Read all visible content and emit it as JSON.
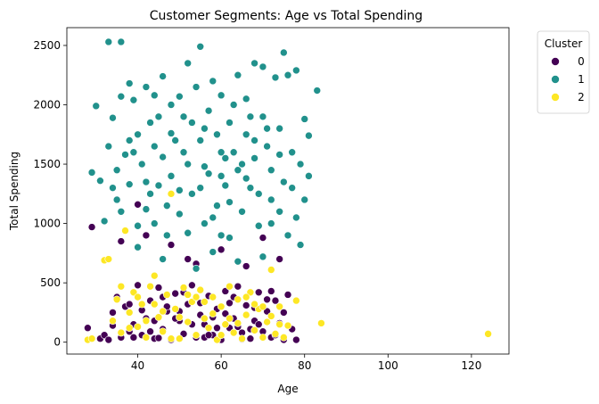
{
  "chart_data": {
    "type": "scatter",
    "title": "Customer Segments: Age vs Total Spending",
    "xlabel": "Age",
    "ylabel": "Total Spending",
    "xlim": [
      23,
      129
    ],
    "ylim": [
      -100,
      2650
    ],
    "x_ticks": [
      40,
      60,
      80,
      100,
      120
    ],
    "y_ticks": [
      0,
      500,
      1000,
      1500,
      2000,
      2500
    ],
    "grid": false,
    "legend": {
      "title": "Cluster",
      "placement": "outside-top-right"
    },
    "series": [
      {
        "name": "0",
        "color": "#440154",
        "points": [
          [
            28,
            120
          ],
          [
            29,
            970
          ],
          [
            31,
            30
          ],
          [
            32,
            60
          ],
          [
            33,
            20
          ],
          [
            34,
            250
          ],
          [
            35,
            380
          ],
          [
            36,
            40
          ],
          [
            37,
            300
          ],
          [
            38,
            90
          ],
          [
            39,
            150
          ],
          [
            40,
            480
          ],
          [
            41,
            60
          ],
          [
            42,
            200
          ],
          [
            43,
            350
          ],
          [
            44,
            30
          ],
          [
            45,
            460
          ],
          [
            46,
            110
          ],
          [
            47,
            260
          ],
          [
            48,
            20
          ],
          [
            49,
            410
          ],
          [
            50,
            180
          ],
          [
            51,
            70
          ],
          [
            52,
            320
          ],
          [
            53,
            480
          ],
          [
            54,
            40
          ],
          [
            55,
            230
          ],
          [
            56,
            150
          ],
          [
            57,
            390
          ],
          [
            58,
            60
          ],
          [
            59,
            280
          ],
          [
            60,
            20
          ],
          [
            61,
            430
          ],
          [
            62,
            120
          ],
          [
            63,
            200
          ],
          [
            64,
            470
          ],
          [
            65,
            80
          ],
          [
            66,
            310
          ],
          [
            67,
            30
          ],
          [
            68,
            180
          ],
          [
            69,
            420
          ],
          [
            70,
            90
          ],
          [
            71,
            260
          ],
          [
            72,
            40
          ],
          [
            73,
            350
          ],
          [
            74,
            160
          ],
          [
            75,
            20
          ],
          [
            76,
            400
          ],
          [
            77,
            110
          ],
          [
            78,
            20
          ],
          [
            38,
            320
          ],
          [
            44,
            180
          ],
          [
            50,
            260
          ],
          [
            56,
            40
          ],
          [
            62,
            330
          ],
          [
            68,
            290
          ],
          [
            46,
            380
          ],
          [
            58,
            210
          ],
          [
            64,
            130
          ],
          [
            72,
            430
          ],
          [
            40,
            1160
          ],
          [
            42,
            900
          ],
          [
            48,
            820
          ],
          [
            36,
            850
          ],
          [
            70,
            880
          ],
          [
            52,
            700
          ],
          [
            54,
            660
          ],
          [
            60,
            780
          ],
          [
            66,
            640
          ],
          [
            74,
            700
          ],
          [
            34,
            140
          ],
          [
            43,
            90
          ],
          [
            47,
            300
          ],
          [
            53,
            150
          ],
          [
            57,
            60
          ],
          [
            61,
            240
          ],
          [
            67,
            110
          ],
          [
            73,
            60
          ],
          [
            75,
            250
          ],
          [
            45,
            35
          ],
          [
            49,
            200
          ],
          [
            55,
            330
          ],
          [
            59,
            120
          ],
          [
            63,
            380
          ],
          [
            65,
            25
          ],
          [
            69,
            150
          ],
          [
            71,
            360
          ],
          [
            39,
            40
          ],
          [
            41,
            270
          ],
          [
            51,
            420
          ]
        ]
      },
      {
        "name": "1",
        "color": "#21918c",
        "points": [
          [
            29,
            1430
          ],
          [
            30,
            1990
          ],
          [
            31,
            1360
          ],
          [
            32,
            1020
          ],
          [
            33,
            1650
          ],
          [
            33,
            2530
          ],
          [
            34,
            1890
          ],
          [
            35,
            1200
          ],
          [
            36,
            2070
          ],
          [
            36,
            2530
          ],
          [
            37,
            1580
          ],
          [
            38,
            1330
          ],
          [
            38,
            2180
          ],
          [
            39,
            2040
          ],
          [
            40,
            1750
          ],
          [
            40,
            980
          ],
          [
            41,
            1500
          ],
          [
            42,
            2150
          ],
          [
            42,
            1120
          ],
          [
            43,
            1850
          ],
          [
            44,
            1650
          ],
          [
            44,
            2080
          ],
          [
            45,
            1320
          ],
          [
            46,
            2240
          ],
          [
            46,
            1560
          ],
          [
            47,
            900
          ],
          [
            48,
            2000
          ],
          [
            48,
            1400
          ],
          [
            49,
            1700
          ],
          [
            50,
            2070
          ],
          [
            50,
            1080
          ],
          [
            51,
            1900
          ],
          [
            52,
            2350
          ],
          [
            52,
            1500
          ],
          [
            53,
            1250
          ],
          [
            54,
            2150
          ],
          [
            55,
            2490
          ],
          [
            55,
            1700
          ],
          [
            56,
            1000
          ],
          [
            57,
            1950
          ],
          [
            57,
            1420
          ],
          [
            58,
            2200
          ],
          [
            59,
            1150
          ],
          [
            60,
            1600
          ],
          [
            60,
            2080
          ],
          [
            61,
            1320
          ],
          [
            62,
            1850
          ],
          [
            62,
            880
          ],
          [
            63,
            2000
          ],
          [
            64,
            1450
          ],
          [
            64,
            2250
          ],
          [
            65,
            1100
          ],
          [
            66,
            1750
          ],
          [
            66,
            2050
          ],
          [
            67,
            1300
          ],
          [
            68,
            2350
          ],
          [
            68,
            1550
          ],
          [
            69,
            980
          ],
          [
            70,
            1900
          ],
          [
            70,
            2320
          ],
          [
            71,
            1650
          ],
          [
            72,
            1200
          ],
          [
            72,
            1450
          ],
          [
            73,
            2230
          ],
          [
            74,
            1800
          ],
          [
            75,
            2440
          ],
          [
            75,
            1350
          ],
          [
            76,
            900
          ],
          [
            76,
            2250
          ],
          [
            77,
            1600
          ],
          [
            78,
            2290
          ],
          [
            78,
            1050
          ],
          [
            79,
            1500
          ],
          [
            80,
            1880
          ],
          [
            80,
            1200
          ],
          [
            81,
            1400
          ],
          [
            81,
            1740
          ],
          [
            83,
            2120
          ],
          [
            38,
            1700
          ],
          [
            45,
            1900
          ],
          [
            53,
            1850
          ],
          [
            59,
            1750
          ],
          [
            65,
            1500
          ],
          [
            71,
            1800
          ],
          [
            35,
            1450
          ],
          [
            43,
            1250
          ],
          [
            51,
            1600
          ],
          [
            61,
            1550
          ],
          [
            67,
            1900
          ],
          [
            74,
            1100
          ],
          [
            40,
            800
          ],
          [
            46,
            700
          ],
          [
            54,
            620
          ],
          [
            58,
            760
          ],
          [
            64,
            680
          ],
          [
            70,
            720
          ],
          [
            42,
            1350
          ],
          [
            50,
            1280
          ],
          [
            56,
            1480
          ],
          [
            62,
            1180
          ],
          [
            66,
            1380
          ],
          [
            72,
            1000
          ],
          [
            48,
            1760
          ],
          [
            56,
            1800
          ],
          [
            60,
            1400
          ],
          [
            68,
            1700
          ],
          [
            44,
            1000
          ],
          [
            52,
            920
          ],
          [
            58,
            1050
          ],
          [
            74,
            1580
          ],
          [
            36,
            1100
          ],
          [
            39,
            1600
          ],
          [
            47,
            1150
          ],
          [
            55,
            1300
          ],
          [
            63,
            1600
          ],
          [
            69,
            1250
          ],
          [
            77,
            1300
          ],
          [
            79,
            820
          ],
          [
            34,
            1300
          ],
          [
            60,
            900
          ]
        ]
      },
      {
        "name": "2",
        "color": "#fde725",
        "points": [
          [
            28,
            20
          ],
          [
            29,
            30
          ],
          [
            32,
            690
          ],
          [
            33,
            700
          ],
          [
            34,
            180
          ],
          [
            35,
            360
          ],
          [
            36,
            80
          ],
          [
            37,
            940
          ],
          [
            38,
            250
          ],
          [
            39,
            420
          ],
          [
            40,
            130
          ],
          [
            41,
            320
          ],
          [
            42,
            40
          ],
          [
            43,
            470
          ],
          [
            44,
            560
          ],
          [
            45,
            210
          ],
          [
            46,
            90
          ],
          [
            47,
            400
          ],
          [
            48,
            1250
          ],
          [
            49,
            280
          ],
          [
            50,
            30
          ],
          [
            51,
            460
          ],
          [
            52,
            170
          ],
          [
            53,
            340
          ],
          [
            54,
            60
          ],
          [
            55,
            440
          ],
          [
            56,
            200
          ],
          [
            57,
            120
          ],
          [
            58,
            380
          ],
          [
            59,
            20
          ],
          [
            60,
            300
          ],
          [
            61,
            150
          ],
          [
            62,
            470
          ],
          [
            63,
            80
          ],
          [
            64,
            360
          ],
          [
            65,
            30
          ],
          [
            66,
            230
          ],
          [
            67,
            420
          ],
          [
            68,
            100
          ],
          [
            69,
            280
          ],
          [
            70,
            40
          ],
          [
            71,
            170
          ],
          [
            72,
            610
          ],
          [
            73,
            70
          ],
          [
            74,
            300
          ],
          [
            75,
            40
          ],
          [
            76,
            140
          ],
          [
            78,
            350
          ],
          [
            84,
            160
          ],
          [
            124,
            70
          ],
          [
            38,
            120
          ],
          [
            44,
            320
          ],
          [
            50,
            210
          ],
          [
            56,
            340
          ],
          [
            60,
            60
          ],
          [
            64,
            160
          ],
          [
            68,
            320
          ],
          [
            72,
            220
          ],
          [
            46,
            260
          ],
          [
            54,
            380
          ],
          [
            40,
            380
          ],
          [
            48,
            30
          ],
          [
            52,
            400
          ],
          [
            58,
            240
          ],
          [
            62,
            200
          ],
          [
            66,
            380
          ],
          [
            70,
            300
          ],
          [
            42,
            180
          ],
          [
            36,
            470
          ],
          [
            74,
            150
          ]
        ]
      }
    ]
  }
}
